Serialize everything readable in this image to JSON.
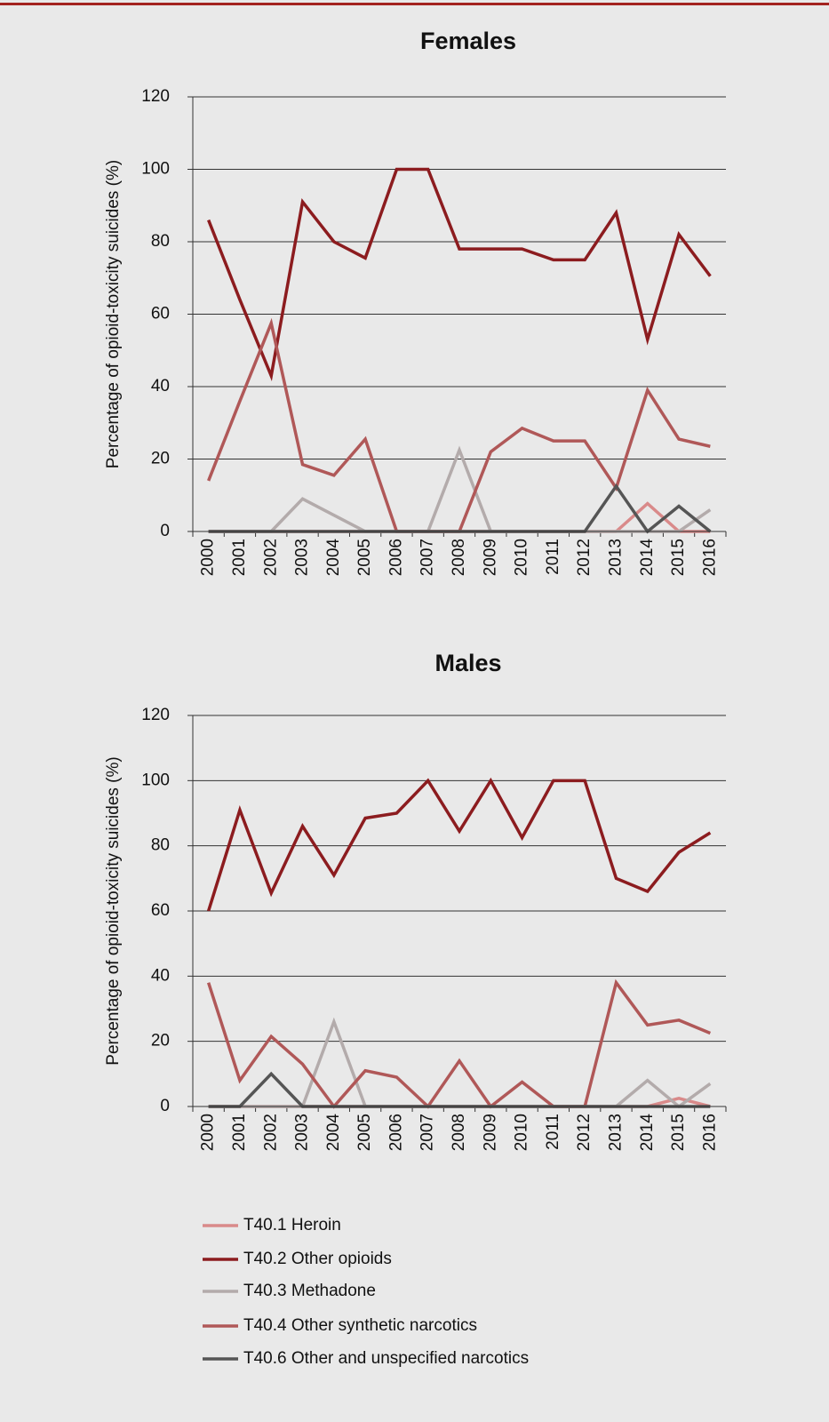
{
  "chart_data": [
    {
      "type": "line",
      "title": "Females",
      "y_label": "Percentage of opioid-toxicity suicides (%)",
      "categories": [
        "2000",
        "2001",
        "2002",
        "2003",
        "2004",
        "2005",
        "2006",
        "2007",
        "2008",
        "2009",
        "2010",
        "2011",
        "2012",
        "2013",
        "2014",
        "2015",
        "2016"
      ],
      "ylim": [
        0,
        120
      ],
      "yticks": [
        0,
        20,
        40,
        60,
        80,
        100,
        120
      ],
      "grid": true,
      "series": [
        {
          "name": "T40.1 Heroin",
          "color": "#d98a8a",
          "values": [
            0,
            0,
            0,
            0,
            0,
            0,
            0,
            0,
            0,
            0,
            0,
            0,
            0,
            0,
            7.7,
            0,
            0
          ]
        },
        {
          "name": "T40.2 Other opioids",
          "color": "#8c1c1f",
          "values": [
            86,
            64,
            43,
            91,
            80,
            75.5,
            100,
            100,
            78,
            78,
            78,
            75,
            75,
            88,
            53,
            82,
            70.5
          ]
        },
        {
          "name": "T40.3 Methadone",
          "color": "#b3abab",
          "values": [
            0,
            0,
            0,
            9,
            4.5,
            0,
            0,
            0,
            22.5,
            0,
            0,
            0,
            0,
            0,
            0,
            0,
            6
          ]
        },
        {
          "name": "T40.4 Other synthetic narcotics",
          "color": "#b05858",
          "values": [
            14,
            36,
            57.5,
            18.5,
            15.5,
            25.5,
            0,
            0,
            0,
            22,
            28.5,
            25,
            25,
            12,
            39,
            25.5,
            23.5
          ]
        },
        {
          "name": "T40.6 Other and unspecified narcotics",
          "color": "#555555",
          "values": [
            0,
            0,
            0,
            0,
            0,
            0,
            0,
            0,
            0,
            0,
            0,
            0,
            0,
            12.5,
            0,
            7,
            0
          ]
        }
      ]
    },
    {
      "type": "line",
      "title": "Males",
      "y_label": "Percentage of opioid-toxicity suicides (%)",
      "categories": [
        "2000",
        "2001",
        "2002",
        "2003",
        "2004",
        "2005",
        "2006",
        "2007",
        "2008",
        "2009",
        "2010",
        "2011",
        "2012",
        "2013",
        "2014",
        "2015",
        "2016"
      ],
      "ylim": [
        0,
        120
      ],
      "yticks": [
        0,
        20,
        40,
        60,
        80,
        100,
        120
      ],
      "grid": true,
      "series": [
        {
          "color": "#d98a8a",
          "values": [
            0,
            0,
            0,
            0,
            0,
            0,
            0,
            0,
            0,
            0,
            0,
            0,
            0,
            0,
            0,
            2.5,
            0
          ]
        },
        {
          "color": "#8c1c1f",
          "values": [
            60,
            91,
            65.5,
            86,
            71,
            88.5,
            90,
            100,
            84.5,
            100,
            82.5,
            100,
            100,
            70,
            66,
            78,
            84
          ]
        },
        {
          "color": "#b3abab",
          "values": [
            0,
            0,
            0,
            0,
            26,
            0,
            0,
            0,
            0,
            0,
            0,
            0,
            0,
            0,
            8,
            0,
            7
          ]
        },
        {
          "color": "#b05858",
          "values": [
            38,
            8,
            21.5,
            13,
            0,
            11,
            9,
            0,
            14,
            0,
            7.5,
            0,
            0,
            38,
            25,
            26.5,
            22.5
          ]
        },
        {
          "color": "#555555",
          "values": [
            0,
            0,
            10,
            0,
            0,
            0,
            0,
            0,
            0,
            0,
            0,
            0,
            0,
            0,
            0,
            0,
            0
          ]
        }
      ]
    }
  ]
}
